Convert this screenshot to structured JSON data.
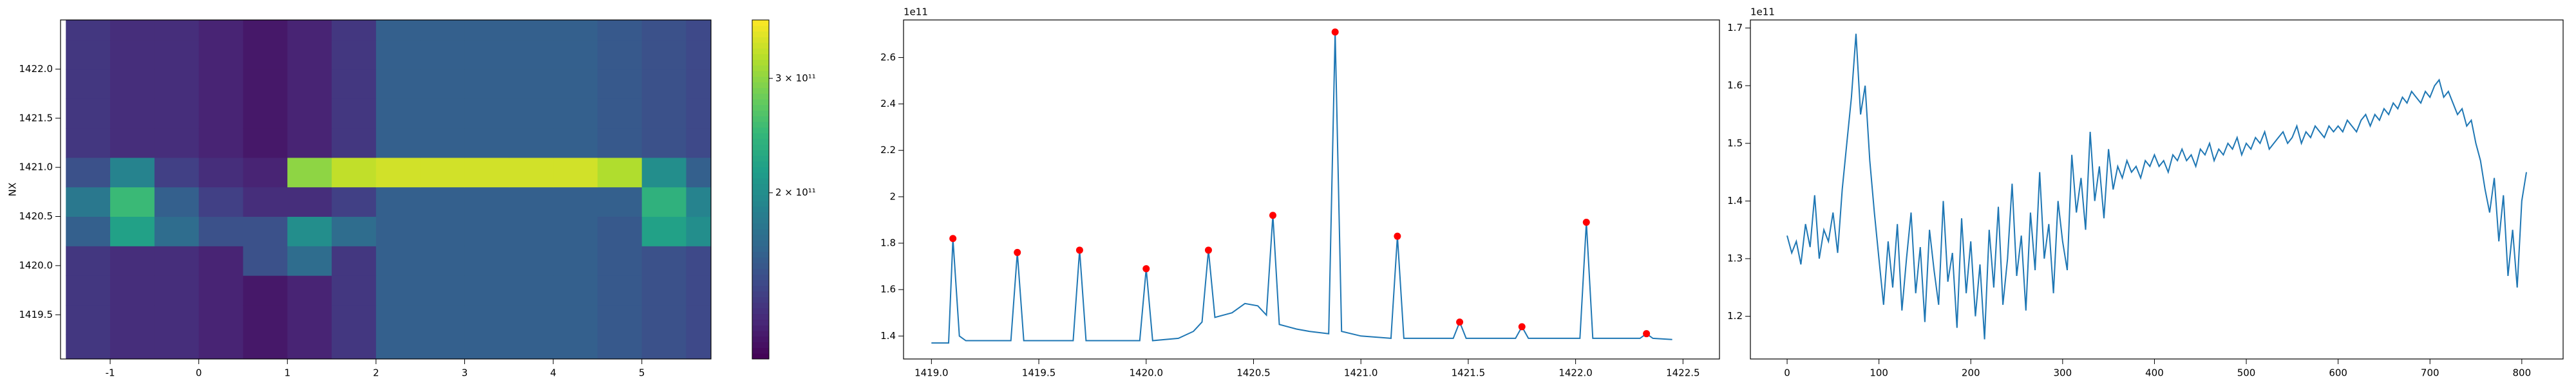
{
  "chart_data": [
    {
      "type": "heatmap",
      "ylabel": "NX",
      "cmap": "viridis",
      "x": [
        -1.25,
        -0.75,
        -0.25,
        0.25,
        0.75,
        1.25,
        1.75,
        2.25,
        2.75,
        3.25,
        3.75,
        4.25,
        4.75,
        5.25,
        5.75
      ],
      "y": [
        1419.15,
        1419.45,
        1419.75,
        1420.05,
        1420.35,
        1420.65,
        1420.95,
        1421.25,
        1421.55,
        1421.85,
        1422.15,
        1422.45
      ],
      "z": [
        [
          135000000000.0,
          130000000000.0,
          130000000000.0,
          125000000000.0,
          120000000000.0,
          125000000000.0,
          135000000000.0,
          160000000000.0,
          160000000000.0,
          160000000000.0,
          160000000000.0,
          160000000000.0,
          155000000000.0,
          150000000000.0,
          145000000000.0
        ],
        [
          135000000000.0,
          130000000000.0,
          130000000000.0,
          125000000000.0,
          120000000000.0,
          125000000000.0,
          135000000000.0,
          160000000000.0,
          160000000000.0,
          160000000000.0,
          160000000000.0,
          160000000000.0,
          155000000000.0,
          150000000000.0,
          145000000000.0
        ],
        [
          135000000000.0,
          130000000000.0,
          130000000000.0,
          125000000000.0,
          120000000000.0,
          125000000000.0,
          135000000000.0,
          160000000000.0,
          160000000000.0,
          160000000000.0,
          160000000000.0,
          160000000000.0,
          155000000000.0,
          150000000000.0,
          145000000000.0
        ],
        [
          135000000000.0,
          130000000000.0,
          130000000000.0,
          125000000000.0,
          150000000000.0,
          170000000000.0,
          135000000000.0,
          160000000000.0,
          160000000000.0,
          160000000000.0,
          160000000000.0,
          160000000000.0,
          155000000000.0,
          150000000000.0,
          145000000000.0
        ],
        [
          160000000000.0,
          220000000000.0,
          170000000000.0,
          150000000000.0,
          150000000000.0,
          200000000000.0,
          170000000000.0,
          160000000000.0,
          160000000000.0,
          160000000000.0,
          160000000000.0,
          160000000000.0,
          155000000000.0,
          220000000000.0,
          200000000000.0
        ],
        [
          180000000000.0,
          250000000000.0,
          160000000000.0,
          140000000000.0,
          130000000000.0,
          130000000000.0,
          140000000000.0,
          160000000000.0,
          160000000000.0,
          160000000000.0,
          160000000000.0,
          160000000000.0,
          160000000000.0,
          240000000000.0,
          190000000000.0
        ],
        [
          150000000000.0,
          190000000000.0,
          140000000000.0,
          130000000000.0,
          125000000000.0,
          300000000000.0,
          330000000000.0,
          340000000000.0,
          340000000000.0,
          340000000000.0,
          340000000000.0,
          340000000000.0,
          320000000000.0,
          200000000000.0,
          160000000000.0
        ],
        [
          135000000000.0,
          130000000000.0,
          130000000000.0,
          125000000000.0,
          120000000000.0,
          125000000000.0,
          135000000000.0,
          160000000000.0,
          160000000000.0,
          160000000000.0,
          160000000000.0,
          160000000000.0,
          155000000000.0,
          150000000000.0,
          145000000000.0
        ],
        [
          135000000000.0,
          130000000000.0,
          130000000000.0,
          125000000000.0,
          120000000000.0,
          125000000000.0,
          135000000000.0,
          160000000000.0,
          160000000000.0,
          160000000000.0,
          160000000000.0,
          160000000000.0,
          155000000000.0,
          150000000000.0,
          145000000000.0
        ],
        [
          135000000000.0,
          130000000000.0,
          130000000000.0,
          125000000000.0,
          120000000000.0,
          125000000000.0,
          135000000000.0,
          160000000000.0,
          160000000000.0,
          160000000000.0,
          160000000000.0,
          160000000000.0,
          155000000000.0,
          150000000000.0,
          145000000000.0
        ],
        [
          135000000000.0,
          130000000000.0,
          130000000000.0,
          125000000000.0,
          120000000000.0,
          125000000000.0,
          135000000000.0,
          160000000000.0,
          160000000000.0,
          160000000000.0,
          160000000000.0,
          160000000000.0,
          155000000000.0,
          150000000000.0,
          145000000000.0
        ],
        [
          135000000000.0,
          130000000000.0,
          130000000000.0,
          125000000000.0,
          120000000000.0,
          125000000000.0,
          135000000000.0,
          160000000000.0,
          160000000000.0,
          160000000000.0,
          160000000000.0,
          160000000000.0,
          155000000000.0,
          150000000000.0,
          145000000000.0
        ]
      ],
      "xlim": [
        -1.56,
        5.78
      ],
      "ylim": [
        1419.05,
        1422.5
      ],
      "xticks": [
        -1,
        0,
        1,
        2,
        3,
        4,
        5
      ],
      "yticks": [
        1419.5,
        {
          "value": 1420,
          "label": "1420.0"
        },
        1420.5,
        {
          "value": 1421,
          "label": "1421.0"
        },
        1421.5,
        {
          "value": 1422,
          "label": "1422.0"
        }
      ],
      "colorbar": {
        "lim": [
          111000000000.0,
          369000000000.0
        ],
        "log": true,
        "ticks": [
          {
            "value": 200000000000.0,
            "label": "2 × 10¹¹"
          },
          {
            "value": 300000000000.0,
            "label": "3 × 10¹¹"
          }
        ]
      }
    },
    {
      "type": "line",
      "color": "#1f77b4",
      "y_offset_text": "1e11",
      "x": [
        1419.0,
        1419.08,
        1419.1,
        1419.13,
        1419.16,
        1419.37,
        1419.4,
        1419.43,
        1419.66,
        1419.69,
        1419.72,
        1419.97,
        1420.0,
        1420.03,
        1420.15,
        1420.22,
        1420.26,
        1420.29,
        1420.32,
        1420.4,
        1420.46,
        1420.52,
        1420.56,
        1420.59,
        1420.62,
        1420.7,
        1420.76,
        1420.85,
        1420.88,
        1420.91,
        1421.0,
        1421.14,
        1421.17,
        1421.2,
        1421.43,
        1421.46,
        1421.49,
        1421.72,
        1421.75,
        1421.78,
        1422.02,
        1422.05,
        1422.08,
        1422.3,
        1422.33,
        1422.36,
        1422.45
      ],
      "values": [
        1.37,
        1.37,
        1.82,
        1.4,
        1.38,
        1.38,
        1.76,
        1.38,
        1.38,
        1.77,
        1.38,
        1.38,
        1.69,
        1.38,
        1.39,
        1.42,
        1.46,
        1.77,
        1.48,
        1.5,
        1.54,
        1.53,
        1.49,
        1.92,
        1.45,
        1.43,
        1.42,
        1.41,
        2.71,
        1.42,
        1.4,
        1.39,
        1.83,
        1.39,
        1.39,
        1.46,
        1.39,
        1.39,
        1.44,
        1.39,
        1.39,
        1.89,
        1.39,
        1.39,
        1.41,
        1.39,
        1.385
      ],
      "markers": {
        "color": "#ff0000",
        "x": [
          1419.1,
          1419.4,
          1419.69,
          1420.0,
          1420.29,
          1420.59,
          1420.88,
          1421.17,
          1421.46,
          1421.75,
          1422.05,
          1422.33
        ],
        "values": [
          1.82,
          1.76,
          1.77,
          1.69,
          1.77,
          1.92,
          2.71,
          1.83,
          1.46,
          1.44,
          1.89,
          1.41
        ]
      },
      "xlim": [
        1418.87,
        1422.67
      ],
      "ylim": [
        1.301,
        2.762
      ],
      "xticks": [
        {
          "value": 1419,
          "label": "1419.0"
        },
        1419.5,
        {
          "value": 1420,
          "label": "1420.0"
        },
        1420.5,
        {
          "value": 1421,
          "label": "1421.0"
        },
        1421.5,
        {
          "value": 1422,
          "label": "1422.0"
        },
        1422.5
      ],
      "yticks": [
        1.4,
        1.6,
        1.8,
        2.0,
        2.2,
        2.4,
        2.6
      ]
    },
    {
      "type": "line",
      "color": "#1f77b4",
      "y_offset_text": "1e11",
      "x": [
        0,
        5,
        10,
        15,
        20,
        25,
        30,
        35,
        40,
        45,
        50,
        55,
        60,
        65,
        70,
        75,
        80,
        85,
        90,
        95,
        100,
        105,
        110,
        115,
        120,
        125,
        130,
        135,
        140,
        145,
        150,
        155,
        160,
        165,
        170,
        175,
        180,
        185,
        190,
        195,
        200,
        205,
        210,
        215,
        220,
        225,
        230,
        235,
        240,
        245,
        250,
        255,
        260,
        265,
        270,
        275,
        280,
        285,
        290,
        295,
        300,
        305,
        310,
        315,
        320,
        325,
        330,
        335,
        340,
        345,
        350,
        355,
        360,
        365,
        370,
        375,
        380,
        385,
        390,
        395,
        400,
        405,
        410,
        415,
        420,
        425,
        430,
        435,
        440,
        445,
        450,
        455,
        460,
        465,
        470,
        475,
        480,
        485,
        490,
        495,
        500,
        505,
        510,
        515,
        520,
        525,
        530,
        535,
        540,
        545,
        550,
        555,
        560,
        565,
        570,
        575,
        580,
        585,
        590,
        595,
        600,
        605,
        610,
        615,
        620,
        625,
        630,
        635,
        640,
        645,
        650,
        655,
        660,
        665,
        670,
        675,
        680,
        685,
        690,
        695,
        700,
        705,
        710,
        715,
        720,
        725,
        730,
        735,
        740,
        745,
        750,
        755,
        760,
        765,
        770,
        775,
        780,
        785,
        790,
        795,
        800,
        805
      ],
      "values": [
        1.34,
        1.31,
        1.33,
        1.29,
        1.36,
        1.32,
        1.41,
        1.3,
        1.35,
        1.33,
        1.38,
        1.31,
        1.42,
        1.5,
        1.58,
        1.69,
        1.55,
        1.6,
        1.47,
        1.38,
        1.3,
        1.22,
        1.33,
        1.25,
        1.36,
        1.21,
        1.3,
        1.38,
        1.24,
        1.32,
        1.19,
        1.35,
        1.28,
        1.22,
        1.4,
        1.26,
        1.31,
        1.18,
        1.37,
        1.24,
        1.33,
        1.2,
        1.29,
        1.16,
        1.35,
        1.25,
        1.39,
        1.22,
        1.3,
        1.43,
        1.27,
        1.34,
        1.21,
        1.38,
        1.28,
        1.45,
        1.3,
        1.36,
        1.24,
        1.4,
        1.33,
        1.28,
        1.48,
        1.38,
        1.44,
        1.35,
        1.52,
        1.4,
        1.46,
        1.37,
        1.49,
        1.42,
        1.46,
        1.44,
        1.47,
        1.45,
        1.46,
        1.44,
        1.47,
        1.46,
        1.48,
        1.46,
        1.47,
        1.45,
        1.48,
        1.47,
        1.49,
        1.47,
        1.48,
        1.46,
        1.49,
        1.48,
        1.5,
        1.47,
        1.49,
        1.48,
        1.5,
        1.49,
        1.51,
        1.48,
        1.5,
        1.49,
        1.51,
        1.5,
        1.52,
        1.49,
        1.5,
        1.51,
        1.52,
        1.5,
        1.51,
        1.53,
        1.5,
        1.52,
        1.51,
        1.53,
        1.52,
        1.51,
        1.53,
        1.52,
        1.53,
        1.52,
        1.54,
        1.53,
        1.52,
        1.54,
        1.55,
        1.53,
        1.55,
        1.54,
        1.56,
        1.55,
        1.57,
        1.56,
        1.58,
        1.57,
        1.59,
        1.58,
        1.57,
        1.59,
        1.58,
        1.6,
        1.61,
        1.58,
        1.59,
        1.57,
        1.55,
        1.56,
        1.53,
        1.54,
        1.5,
        1.47,
        1.42,
        1.38,
        1.44,
        1.33,
        1.41,
        1.27,
        1.35,
        1.25,
        1.4,
        1.45
      ],
      "xlim": [
        -40,
        845
      ],
      "ylim": [
        1.126,
        1.714
      ],
      "xticks": [
        0,
        100,
        200,
        300,
        400,
        500,
        600,
        700,
        800
      ],
      "yticks": [
        1.2,
        1.3,
        1.4,
        1.5,
        1.6,
        1.7
      ]
    }
  ]
}
